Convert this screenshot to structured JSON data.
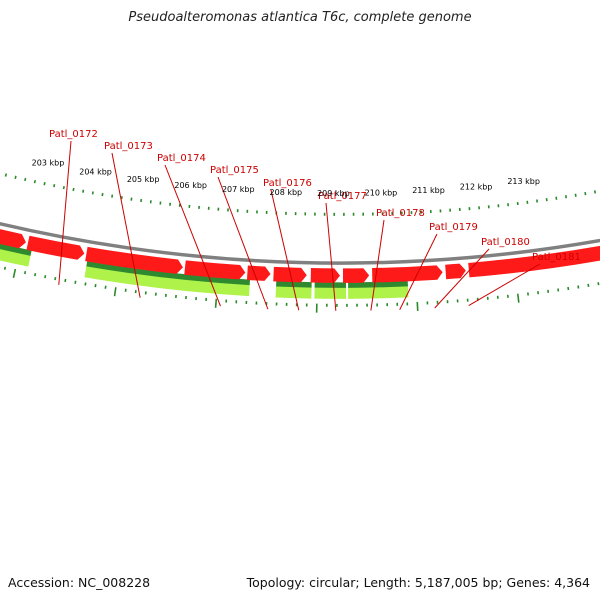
{
  "title": "Pseudoalteromonas atlantica T6c, complete genome",
  "footer": {
    "accession_text": "Accession: NC_008228",
    "summary_text": "Topology: circular; Length: 5,187,005 bp; Genes: 4,364"
  },
  "colors": {
    "forward_gene_light": "#aef24a",
    "forward_gene_dark": "#2f8a2f",
    "reverse_gene": "#ff1a1a",
    "backbone": "#808080",
    "tick": "#2a8a2a",
    "gene_label": "#cc0000",
    "kbp_label": "#000000"
  },
  "genes": [
    {
      "name": "Patl_0172"
    },
    {
      "name": "Patl_0173"
    },
    {
      "name": "Patl_0174"
    },
    {
      "name": "Patl_0175"
    },
    {
      "name": "Patl_0176"
    },
    {
      "name": "Patl_0177"
    },
    {
      "name": "Patl_0178"
    },
    {
      "name": "Patl_0179"
    },
    {
      "name": "Patl_0180"
    },
    {
      "name": "Patl_0181"
    }
  ],
  "scale_labels": [
    "203 kbp",
    "204 kbp",
    "205 kbp",
    "206 kbp",
    "207 kbp",
    "208 kbp",
    "209 kbp",
    "210 kbp",
    "211 kbp",
    "212 kbp",
    "213 kbp"
  ]
}
